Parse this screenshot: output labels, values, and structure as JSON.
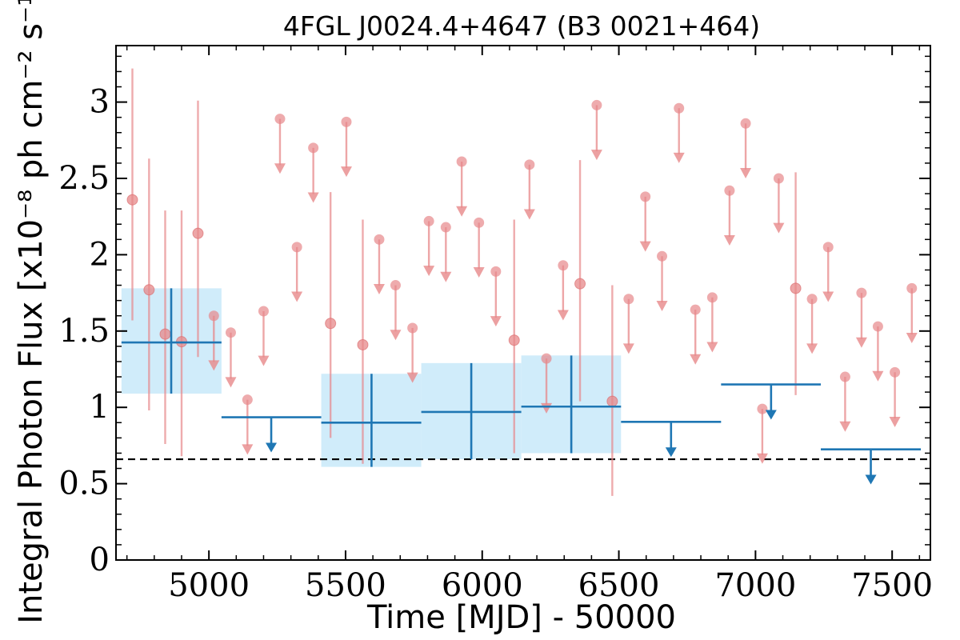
{
  "chart_data": {
    "type": "scatter",
    "title": "4FGL J0024.4+4647 (B3 0021+464)",
    "xlabel": "Time [MJD] - 50000",
    "ylabel": "Integral Photon Flux [x10⁻⁸ ph cm⁻² s⁻¹]",
    "xlim": [
      4660,
      7640
    ],
    "ylim": [
      0,
      3.37
    ],
    "x_ticks": [
      5000,
      5500,
      6000,
      6500,
      7000,
      7500
    ],
    "y_ticks": [
      {
        "value": 0,
        "label": "0"
      },
      {
        "value": 0.5,
        "label": "0.5"
      },
      {
        "value": 1,
        "label": "1"
      },
      {
        "value": 1.5,
        "label": "1.5"
      },
      {
        "value": 2,
        "label": "2"
      },
      {
        "value": 2.5,
        "label": "2.5"
      },
      {
        "value": 3,
        "label": "3"
      }
    ],
    "reference_line": {
      "y": 0.66,
      "style": "dashed",
      "color": "#000000"
    },
    "colors": {
      "short_bins": "#e7888a",
      "long_bins": "#1f77b4",
      "error_box": "#cdebfa"
    },
    "short_bins": {
      "detections": [
        {
          "x": 4720,
          "y": 2.36,
          "lo": 1.57,
          "hi": 3.22
        },
        {
          "x": 4781,
          "y": 1.77,
          "lo": 0.98,
          "hi": 2.63
        },
        {
          "x": 4840,
          "y": 1.48,
          "lo": 0.76,
          "hi": 2.29
        },
        {
          "x": 4900,
          "y": 1.43,
          "lo": 0.68,
          "hi": 2.29
        },
        {
          "x": 4960,
          "y": 2.14,
          "lo": 1.33,
          "hi": 3.01
        },
        {
          "x": 5445,
          "y": 1.55,
          "lo": 0.8,
          "hi": 2.41
        },
        {
          "x": 5563,
          "y": 1.41,
          "lo": 0.63,
          "hi": 2.23
        },
        {
          "x": 6117,
          "y": 1.44,
          "lo": 0.7,
          "hi": 2.23
        },
        {
          "x": 6358,
          "y": 1.81,
          "lo": 1.04,
          "hi": 2.62
        },
        {
          "x": 6476,
          "y": 1.04,
          "lo": 0.42,
          "hi": 1.8
        },
        {
          "x": 7147,
          "y": 1.78,
          "lo": 1.08,
          "hi": 2.54
        }
      ],
      "upper_limits": [
        {
          "x": 5018,
          "y": 1.6
        },
        {
          "x": 5080,
          "y": 1.49
        },
        {
          "x": 5141,
          "y": 1.05
        },
        {
          "x": 5200,
          "y": 1.63
        },
        {
          "x": 5260,
          "y": 2.89
        },
        {
          "x": 5322,
          "y": 2.05
        },
        {
          "x": 5382,
          "y": 2.7
        },
        {
          "x": 5503,
          "y": 2.87
        },
        {
          "x": 5623,
          "y": 2.1
        },
        {
          "x": 5683,
          "y": 1.8
        },
        {
          "x": 5745,
          "y": 1.52
        },
        {
          "x": 5805,
          "y": 2.22
        },
        {
          "x": 5867,
          "y": 2.18
        },
        {
          "x": 5925,
          "y": 2.61
        },
        {
          "x": 5988,
          "y": 2.21
        },
        {
          "x": 6050,
          "y": 1.89
        },
        {
          "x": 6173,
          "y": 2.59
        },
        {
          "x": 6235,
          "y": 1.32
        },
        {
          "x": 6296,
          "y": 1.93
        },
        {
          "x": 6419,
          "y": 2.98
        },
        {
          "x": 6536,
          "y": 1.71
        },
        {
          "x": 6597,
          "y": 2.38
        },
        {
          "x": 6658,
          "y": 1.99
        },
        {
          "x": 6720,
          "y": 2.96
        },
        {
          "x": 6780,
          "y": 1.64
        },
        {
          "x": 6842,
          "y": 1.72
        },
        {
          "x": 6905,
          "y": 2.42
        },
        {
          "x": 6964,
          "y": 2.86
        },
        {
          "x": 7025,
          "y": 0.99
        },
        {
          "x": 7085,
          "y": 2.5
        },
        {
          "x": 7207,
          "y": 1.71
        },
        {
          "x": 7266,
          "y": 2.05
        },
        {
          "x": 7328,
          "y": 1.2
        },
        {
          "x": 7388,
          "y": 1.75
        },
        {
          "x": 7448,
          "y": 1.53
        },
        {
          "x": 7510,
          "y": 1.23
        },
        {
          "x": 7572,
          "y": 1.78
        }
      ]
    },
    "long_bins": {
      "detections": [
        {
          "x": 4862,
          "x_lo": 4680,
          "x_hi": 5046,
          "y": 1.425,
          "lo": 1.09,
          "hi": 1.78
        },
        {
          "x": 5595,
          "x_lo": 5411,
          "x_hi": 5777,
          "y": 0.9,
          "lo": 0.61,
          "hi": 1.22
        },
        {
          "x": 5960,
          "x_lo": 5777,
          "x_hi": 6143,
          "y": 0.97,
          "lo": 0.66,
          "hi": 1.29
        },
        {
          "x": 6326,
          "x_lo": 6143,
          "x_hi": 6508,
          "y": 1.005,
          "lo": 0.7,
          "hi": 1.34
        }
      ],
      "upper_limits": [
        {
          "x": 5228,
          "x_lo": 5046,
          "x_hi": 5411,
          "y": 0.935
        },
        {
          "x": 6691,
          "x_lo": 6508,
          "x_hi": 6874,
          "y": 0.905
        },
        {
          "x": 7057,
          "x_lo": 6874,
          "x_hi": 7239,
          "y": 1.15
        },
        {
          "x": 7422,
          "x_lo": 7239,
          "x_hi": 7605,
          "y": 0.725
        }
      ]
    }
  }
}
